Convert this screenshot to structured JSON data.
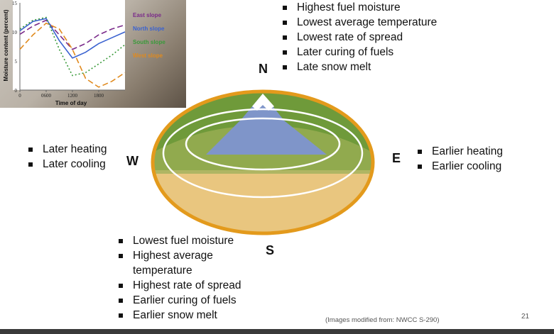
{
  "north_label": "N",
  "south_label": "S",
  "east_label": "E",
  "west_label": "W",
  "north_bullets": [
    "Highest fuel moisture",
    "Lowest average temperature",
    "Lowest rate of spread",
    "Later curing of fuels",
    "Late snow melt"
  ],
  "south_bullets": [
    "Lowest fuel moisture",
    "Highest average temperature",
    "Highest rate of spread",
    "Earlier curing of fuels",
    "Earlier snow melt"
  ],
  "east_bullets": [
    "Earlier heating",
    "Earlier cooling"
  ],
  "west_bullets": [
    "Later heating",
    "Later cooling"
  ],
  "credit": "(Images modified from: NWCC S-290)",
  "page_number": "21",
  "colors": {
    "east": "#7a2a8a",
    "north": "#3a62d0",
    "south": "#3a9a3a",
    "west": "#e08a1e",
    "ellipse_border": "#e39a1c"
  },
  "chart_data": {
    "type": "line",
    "xlabel": "Time of day",
    "ylabel": "Moisture content (percent)",
    "x_ticks": [
      "0",
      "0600",
      "1200",
      "1800"
    ],
    "y_ticks": [
      0,
      5,
      10,
      15
    ],
    "xlim": [
      0,
      2400
    ],
    "ylim": [
      0,
      15
    ],
    "x": [
      0,
      300,
      600,
      900,
      1200,
      1500,
      1800,
      2100,
      2400
    ],
    "series": [
      {
        "name": "East slope",
        "color": "#7a2a8a",
        "dash": "8,4",
        "values": [
          9.6,
          11,
          12,
          9.5,
          7,
          8,
          9.5,
          10.5,
          11.2
        ]
      },
      {
        "name": "North slope",
        "color": "#3a62d0",
        "dash": "",
        "values": [
          10.2,
          11.8,
          12.3,
          8.5,
          5.5,
          6.5,
          8,
          9,
          10
        ]
      },
      {
        "name": "South slope",
        "color": "#3a9a3a",
        "dash": "2,3",
        "values": [
          10.5,
          12,
          12.5,
          7,
          2.5,
          3,
          4.5,
          6,
          7.8
        ]
      },
      {
        "name": "West slope",
        "color": "#e08a1e",
        "dash": "8,4",
        "values": [
          7,
          9.5,
          11.5,
          10.5,
          7,
          2,
          0.5,
          1.5,
          3
        ]
      }
    ]
  }
}
